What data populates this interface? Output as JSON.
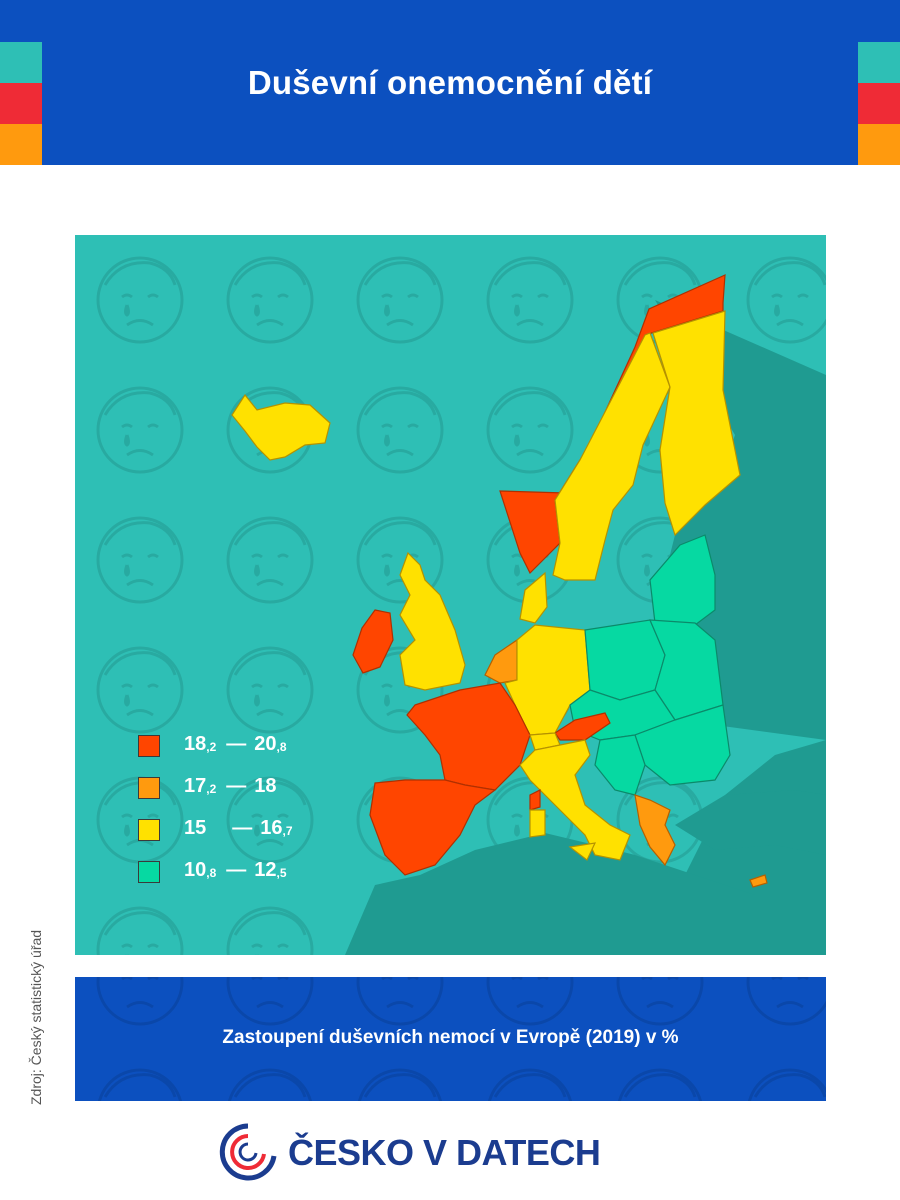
{
  "header": {
    "title": "Duševní onemocnění dětí",
    "stripe_colors": [
      "#2ebfb5",
      "#ef2b36",
      "#ff9a0e"
    ]
  },
  "map": {
    "legend": [
      {
        "from_main": "18",
        "from_dec": ",2",
        "to_main": "20",
        "to_dec": ",8",
        "color": "#ff4500"
      },
      {
        "from_main": "17",
        "from_dec": ",2",
        "to_main": "18",
        "to_dec": "",
        "color": "#ff9a0e"
      },
      {
        "from_main": "15",
        "from_dec": "",
        "to_main": "16",
        "to_dec": ",7",
        "color": "#ffe100"
      },
      {
        "from_main": "10",
        "from_dec": ",8",
        "to_main": "12",
        "to_dec": ",5",
        "color": "#06d9a2"
      }
    ],
    "sea_color": "#2ebfb5",
    "land_color": "#1f9b91"
  },
  "caption": "Zastoupení duševních nemocí v Evropě (2019) v %",
  "source": "Zdroj: Český statistický úřad",
  "brand": {
    "name": "ČESKO V DATECH"
  }
}
